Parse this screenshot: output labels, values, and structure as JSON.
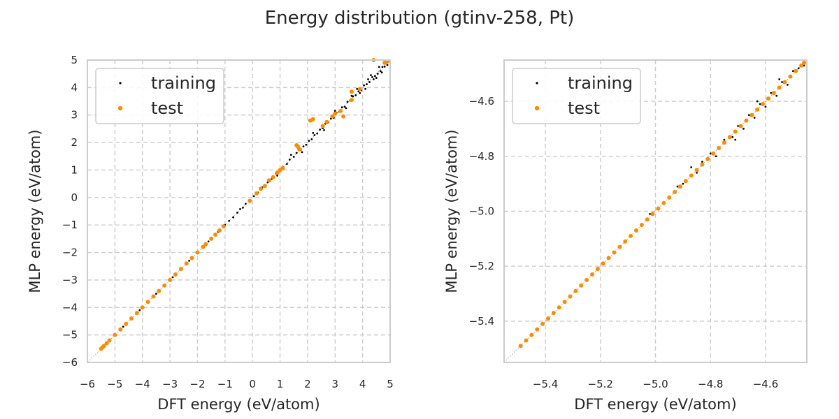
{
  "figure_title": "Energy distribution (gtinv-258, Pt)",
  "chart_data": [
    {
      "type": "scatter",
      "title": "",
      "xlabel": "DFT energy (eV/atom)",
      "ylabel": "MLP energy (eV/atom)",
      "xlim": [
        -6,
        5
      ],
      "ylim": [
        -6,
        5
      ],
      "xticks": [
        -6,
        -5,
        -4,
        -3,
        -2,
        -1,
        0,
        1,
        2,
        3,
        4,
        5
      ],
      "yticks": [
        -6,
        -5,
        -4,
        -3,
        -2,
        -1,
        0,
        1,
        2,
        3,
        4,
        5
      ],
      "tick_labels_x": [
        "−6",
        "−5",
        "−4",
        "−3",
        "−2",
        "−1",
        "0",
        "1",
        "2",
        "3",
        "4",
        "5"
      ],
      "tick_labels_y": [
        "−6",
        "−5",
        "−4",
        "−3",
        "−2",
        "−1",
        "0",
        "1",
        "2",
        "3",
        "4",
        "5"
      ],
      "grid": true,
      "grid_style": "dashed",
      "reference_line": "y = x",
      "legend_position": "upper-left",
      "series": [
        {
          "name": "training",
          "color": "#000000",
          "points": [
            [
              -5.49,
              -5.49
            ],
            [
              -5.3,
              -5.3
            ],
            [
              -5.0,
              -5.0
            ],
            [
              -4.7,
              -4.7
            ],
            [
              -4.4,
              -4.4
            ],
            [
              -4.1,
              -4.1
            ],
            [
              -3.8,
              -3.8
            ],
            [
              -3.5,
              -3.5
            ],
            [
              -3.2,
              -3.2
            ],
            [
              -2.9,
              -2.9
            ],
            [
              -2.6,
              -2.6
            ],
            [
              -2.3,
              -2.3
            ],
            [
              -2.0,
              -2.0
            ],
            [
              -1.6,
              -1.6
            ],
            [
              -1.25,
              -1.25
            ],
            [
              -1.0,
              -1.0
            ],
            [
              -0.85,
              -0.85
            ],
            [
              -0.7,
              -0.72
            ],
            [
              -0.55,
              -0.55
            ],
            [
              -0.45,
              -0.42
            ],
            [
              -0.35,
              -0.37
            ],
            [
              -0.25,
              -0.23
            ],
            [
              -0.1,
              -0.1
            ],
            [
              0.05,
              0.05
            ],
            [
              0.2,
              0.18
            ],
            [
              0.35,
              0.37
            ],
            [
              0.55,
              0.55
            ],
            [
              0.7,
              0.68
            ],
            [
              0.85,
              0.88
            ],
            [
              1.0,
              1.0
            ],
            [
              1.1,
              1.12
            ],
            [
              1.25,
              1.22
            ],
            [
              1.35,
              1.38
            ],
            [
              1.5,
              1.48
            ],
            [
              1.6,
              1.62
            ],
            [
              1.75,
              1.73
            ],
            [
              1.85,
              1.86
            ],
            [
              1.95,
              1.92
            ],
            [
              2.05,
              2.06
            ],
            [
              2.15,
              2.12
            ],
            [
              2.25,
              2.27
            ],
            [
              2.35,
              2.33
            ],
            [
              2.45,
              2.47
            ],
            [
              2.55,
              2.52
            ],
            [
              2.65,
              2.69
            ],
            [
              2.75,
              2.73
            ],
            [
              2.85,
              2.87
            ],
            [
              2.95,
              2.9
            ],
            [
              3.05,
              3.08
            ],
            [
              3.15,
              3.12
            ],
            [
              3.25,
              3.28
            ],
            [
              3.35,
              3.3
            ],
            [
              3.45,
              3.48
            ],
            [
              3.55,
              3.52
            ],
            [
              3.65,
              3.68
            ],
            [
              3.75,
              3.72
            ],
            [
              3.85,
              3.86
            ],
            [
              3.95,
              3.9
            ],
            [
              4.05,
              4.08
            ],
            [
              4.15,
              4.12
            ],
            [
              4.25,
              4.2
            ],
            [
              4.35,
              4.38
            ],
            [
              4.45,
              4.42
            ],
            [
              4.55,
              4.5
            ],
            [
              4.65,
              4.6
            ],
            [
              4.72,
              4.75
            ],
            [
              4.8,
              4.76
            ],
            [
              4.85,
              4.9
            ],
            [
              4.5,
              4.35
            ],
            [
              4.6,
              4.75
            ],
            [
              4.7,
              4.55
            ],
            [
              4.3,
              4.45
            ],
            [
              4.1,
              3.95
            ],
            [
              3.8,
              3.95
            ],
            [
              3.4,
              3.25
            ],
            [
              3.0,
              3.15
            ],
            [
              2.6,
              2.45
            ],
            [
              2.2,
              2.35
            ],
            [
              1.8,
              1.65
            ],
            [
              1.4,
              1.55
            ],
            [
              0.9,
              0.8
            ],
            [
              4.9,
              4.82
            ],
            [
              4.4,
              4.3
            ],
            [
              4.2,
              4.3
            ],
            [
              3.9,
              3.8
            ],
            [
              3.6,
              3.7
            ]
          ]
        },
        {
          "name": "test",
          "color": "#ff8c00",
          "points": [
            [
              -5.5,
              -5.5
            ],
            [
              -5.45,
              -5.45
            ],
            [
              -5.4,
              -5.4
            ],
            [
              -5.3,
              -5.3
            ],
            [
              -5.2,
              -5.2
            ],
            [
              -5.0,
              -5.0
            ],
            [
              -4.8,
              -4.8
            ],
            [
              -4.6,
              -4.6
            ],
            [
              -4.4,
              -4.4
            ],
            [
              -4.2,
              -4.2
            ],
            [
              -4.0,
              -4.0
            ],
            [
              -3.8,
              -3.8
            ],
            [
              -3.6,
              -3.6
            ],
            [
              -3.4,
              -3.4
            ],
            [
              -3.2,
              -3.2
            ],
            [
              -3.0,
              -3.0
            ],
            [
              -2.8,
              -2.8
            ],
            [
              -2.6,
              -2.6
            ],
            [
              -2.4,
              -2.4
            ],
            [
              -2.2,
              -2.2
            ],
            [
              -2.0,
              -2.0
            ],
            [
              -1.8,
              -1.8
            ],
            [
              -1.7,
              -1.7
            ],
            [
              -1.5,
              -1.5
            ],
            [
              -1.35,
              -1.35
            ],
            [
              -1.2,
              -1.2
            ],
            [
              -1.05,
              -1.05
            ],
            [
              -0.1,
              -0.12
            ],
            [
              0.15,
              0.15
            ],
            [
              0.3,
              0.32
            ],
            [
              0.45,
              0.42
            ],
            [
              0.6,
              0.62
            ],
            [
              0.75,
              0.74
            ],
            [
              0.9,
              0.9
            ],
            [
              1.0,
              1.0
            ],
            [
              1.1,
              1.07
            ],
            [
              1.6,
              1.9
            ],
            [
              1.65,
              1.85
            ],
            [
              1.7,
              1.75
            ],
            [
              2.1,
              2.8
            ],
            [
              2.2,
              2.85
            ],
            [
              2.55,
              2.6
            ],
            [
              2.7,
              2.75
            ],
            [
              2.9,
              2.95
            ],
            [
              3.0,
              3.05
            ],
            [
              3.2,
              3.15
            ],
            [
              3.3,
              2.95
            ],
            [
              3.6,
              3.55
            ],
            [
              3.6,
              3.85
            ],
            [
              3.9,
              3.95
            ],
            [
              4.4,
              5.0
            ],
            [
              4.8,
              4.9
            ],
            [
              4.9,
              4.95
            ]
          ]
        }
      ]
    },
    {
      "type": "scatter",
      "title": "",
      "xlabel": "DFT energy (eV/atom)",
      "ylabel": "MLP energy (eV/atom)",
      "xlim": [
        -5.55,
        -4.45
      ],
      "ylim": [
        -5.55,
        -4.45
      ],
      "xticks": [
        -5.4,
        -5.2,
        -5.0,
        -4.8,
        -4.6
      ],
      "yticks": [
        -5.4,
        -5.2,
        -5.0,
        -4.8,
        -4.6
      ],
      "tick_labels_x": [
        "−5.4",
        "−5.2",
        "−5.0",
        "−4.8",
        "−4.6"
      ],
      "tick_labels_y": [
        "−5.4",
        "−5.2",
        "−5.0",
        "−4.8",
        "−4.6"
      ],
      "grid": true,
      "grid_style": "dashed",
      "reference_line": "y = x",
      "legend_position": "upper-left",
      "series": [
        {
          "name": "training",
          "color": "#000000",
          "points": [
            [
              -5.45,
              -5.45
            ],
            [
              -5.35,
              -5.35
            ],
            [
              -5.25,
              -5.25
            ],
            [
              -5.15,
              -5.15
            ],
            [
              -5.05,
              -5.05
            ],
            [
              -4.95,
              -4.95
            ],
            [
              -4.92,
              -4.91
            ],
            [
              -4.9,
              -4.9
            ],
            [
              -4.85,
              -4.86
            ],
            [
              -4.83,
              -4.82
            ],
            [
              -4.8,
              -4.79
            ],
            [
              -4.78,
              -4.8
            ],
            [
              -4.75,
              -4.74
            ],
            [
              -4.72,
              -4.73
            ],
            [
              -4.7,
              -4.69
            ],
            [
              -4.68,
              -4.7
            ],
            [
              -4.66,
              -4.65
            ],
            [
              -4.64,
              -4.66
            ],
            [
              -4.62,
              -4.61
            ],
            [
              -4.6,
              -4.62
            ],
            [
              -4.58,
              -4.57
            ],
            [
              -4.56,
              -4.58
            ],
            [
              -4.54,
              -4.53
            ],
            [
              -4.52,
              -4.54
            ],
            [
              -4.5,
              -4.49
            ],
            [
              -4.48,
              -4.48
            ],
            [
              -4.46,
              -4.47
            ],
            [
              -4.63,
              -4.6
            ],
            [
              -4.55,
              -4.52
            ],
            [
              -4.71,
              -4.74
            ],
            [
              -4.87,
              -4.84
            ],
            [
              -5.02,
              -5.01
            ]
          ]
        },
        {
          "name": "test",
          "color": "#ff8c00",
          "points": [
            [
              -5.49,
              -5.49
            ],
            [
              -5.47,
              -5.47
            ],
            [
              -5.45,
              -5.45
            ],
            [
              -5.43,
              -5.43
            ],
            [
              -5.41,
              -5.41
            ],
            [
              -5.39,
              -5.39
            ],
            [
              -5.37,
              -5.37
            ],
            [
              -5.35,
              -5.35
            ],
            [
              -5.33,
              -5.33
            ],
            [
              -5.31,
              -5.31
            ],
            [
              -5.29,
              -5.29
            ],
            [
              -5.27,
              -5.27
            ],
            [
              -5.25,
              -5.25
            ],
            [
              -5.23,
              -5.23
            ],
            [
              -5.21,
              -5.21
            ],
            [
              -5.19,
              -5.19
            ],
            [
              -5.17,
              -5.17
            ],
            [
              -5.15,
              -5.15
            ],
            [
              -5.13,
              -5.13
            ],
            [
              -5.11,
              -5.11
            ],
            [
              -5.09,
              -5.09
            ],
            [
              -5.07,
              -5.07
            ],
            [
              -5.05,
              -5.05
            ],
            [
              -5.03,
              -5.03
            ],
            [
              -5.01,
              -5.01
            ],
            [
              -4.99,
              -4.99
            ],
            [
              -4.97,
              -4.97
            ],
            [
              -4.95,
              -4.95
            ],
            [
              -4.93,
              -4.93
            ],
            [
              -4.91,
              -4.91
            ],
            [
              -4.89,
              -4.89
            ],
            [
              -4.87,
              -4.87
            ],
            [
              -4.85,
              -4.85
            ],
            [
              -4.83,
              -4.83
            ],
            [
              -4.81,
              -4.81
            ],
            [
              -4.79,
              -4.79
            ],
            [
              -4.77,
              -4.77
            ],
            [
              -4.75,
              -4.75
            ],
            [
              -4.73,
              -4.73
            ],
            [
              -4.71,
              -4.71
            ],
            [
              -4.69,
              -4.69
            ],
            [
              -4.67,
              -4.67
            ],
            [
              -4.65,
              -4.65
            ],
            [
              -4.63,
              -4.63
            ],
            [
              -4.61,
              -4.61
            ],
            [
              -4.59,
              -4.59
            ],
            [
              -4.57,
              -4.57
            ],
            [
              -4.55,
              -4.55
            ],
            [
              -4.53,
              -4.53
            ],
            [
              -4.51,
              -4.51
            ],
            [
              -4.49,
              -4.49
            ],
            [
              -4.47,
              -4.47
            ],
            [
              -4.46,
              -4.46
            ]
          ]
        }
      ]
    }
  ]
}
